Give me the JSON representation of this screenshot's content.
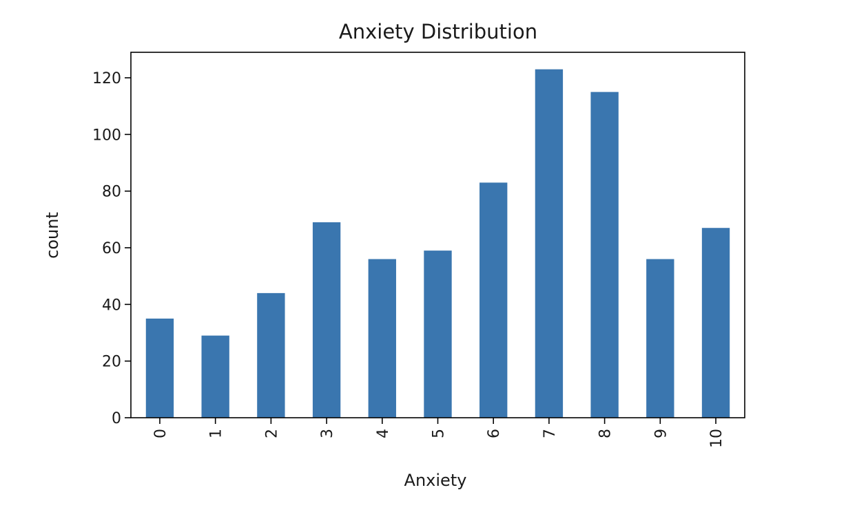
{
  "chart_data": {
    "type": "bar",
    "title": "Anxiety Distribution",
    "xlabel": "Anxiety",
    "ylabel": "count",
    "categories": [
      "0",
      "1",
      "2",
      "3",
      "4",
      "5",
      "6",
      "7",
      "8",
      "9",
      "10"
    ],
    "values": [
      35,
      29,
      44,
      69,
      56,
      59,
      83,
      123,
      115,
      56,
      67
    ],
    "ylim": [
      0,
      129
    ],
    "yticks": [
      "0",
      "20",
      "40",
      "60",
      "80",
      "100",
      "120"
    ],
    "bar_color": "#3a76af",
    "grid": false,
    "legend": "none"
  }
}
